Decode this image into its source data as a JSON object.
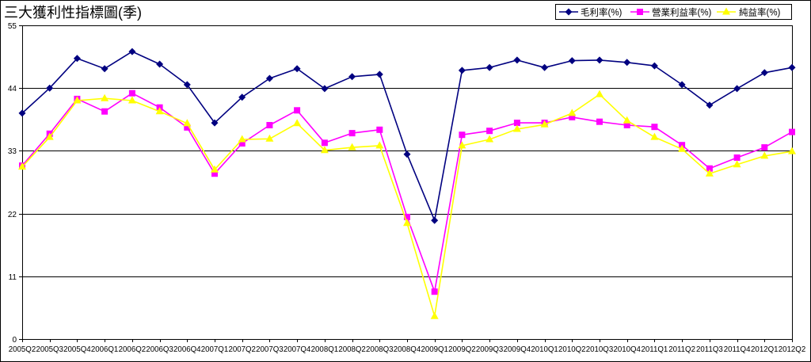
{
  "chart_data": {
    "type": "line",
    "title": "三大獲利性指標圖(季)",
    "categories": [
      "2005Q2",
      "2005Q3",
      "2005Q4",
      "2006Q1",
      "2006Q2",
      "2006Q3",
      "2006Q4",
      "2007Q1",
      "2007Q2",
      "2007Q3",
      "2007Q4",
      "2008Q1",
      "2008Q2",
      "2008Q3",
      "2008Q4",
      "2009Q1",
      "2009Q2",
      "2009Q3",
      "2009Q4",
      "2010Q1",
      "2010Q2",
      "2010Q3",
      "2010Q4",
      "2011Q1",
      "2011Q2",
      "2011Q3",
      "2011Q4",
      "2012Q1",
      "2012Q2"
    ],
    "ylim": [
      0,
      55
    ],
    "yticks": [
      0,
      11,
      22,
      33,
      44,
      55
    ],
    "grid": true,
    "legend_position": "top-right",
    "series": [
      {
        "name": "毛利率(%)",
        "color": "#000080",
        "marker": "diamond",
        "values": [
          39.6,
          44.0,
          49.2,
          47.4,
          50.4,
          48.2,
          44.6,
          37.9,
          42.4,
          45.7,
          47.4,
          43.9,
          46.0,
          46.4,
          32.4,
          20.8,
          47.1,
          47.6,
          48.9,
          47.6,
          48.8,
          48.9,
          48.5,
          47.9,
          44.6,
          41.0,
          43.9,
          46.7,
          47.6
        ]
      },
      {
        "name": "營業利益率(%)",
        "color": "#FF00FF",
        "marker": "square",
        "values": [
          30.4,
          36.0,
          42.1,
          39.9,
          43.1,
          40.6,
          37.1,
          29.0,
          34.3,
          37.5,
          40.1,
          34.4,
          36.1,
          36.7,
          21.4,
          8.3,
          35.8,
          36.5,
          37.9,
          37.9,
          38.9,
          38.1,
          37.5,
          37.2,
          34.0,
          29.9,
          31.8,
          33.6,
          36.3
        ]
      },
      {
        "name": "純益率(%)",
        "color": "#FFFF00",
        "marker": "triangle",
        "values": [
          30.2,
          35.4,
          41.8,
          42.2,
          41.8,
          39.9,
          37.8,
          29.7,
          35.0,
          35.1,
          37.8,
          33.1,
          33.6,
          33.9,
          20.3,
          4.0,
          33.9,
          35.0,
          36.8,
          37.6,
          39.6,
          42.9,
          38.3,
          35.4,
          33.3,
          29.0,
          30.6,
          32.1,
          32.9
        ]
      }
    ]
  }
}
